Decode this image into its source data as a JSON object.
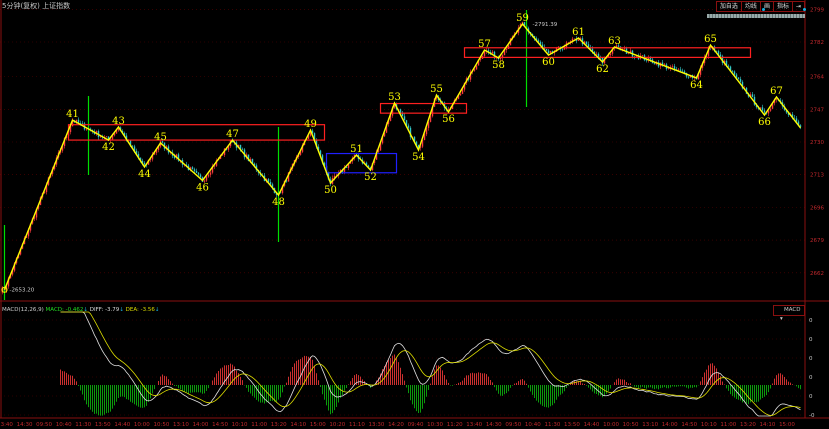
{
  "header": {
    "title": "5分钟(复权)  上证指数",
    "toolbar": [
      "加自选",
      "均线",
      "画",
      "指标",
      "⇥"
    ]
  },
  "colors": {
    "background": "#000000",
    "grid": "#5a0000",
    "axis_text": "#c0282c",
    "up_candle": "#ff3c3c",
    "down_candle": "#32c8c8",
    "zigzag": "#ffff00",
    "box_red": "#ff2020",
    "box_blue": "#2020ff",
    "marker_line": "#00dd00"
  },
  "chart_data": {
    "type": "line",
    "price_axis": {
      "ticks": [
        "2799",
        "2782",
        "2764",
        "2747",
        "2730",
        "2713",
        "2696",
        "2679",
        "2662"
      ],
      "range": [
        2645,
        2800
      ]
    },
    "time_ticks": [
      "13:40",
      "14:30",
      "09:50",
      "10:40",
      "11:30",
      "13:50",
      "14:40",
      "10:00",
      "10:50",
      "13:10",
      "14:00",
      "14:50",
      "10:10",
      "11:00",
      "13:20",
      "14:10",
      "15:00",
      "10:20",
      "11:10",
      "13:30",
      "14:20",
      "09:40",
      "10:30",
      "11:20",
      "13:40",
      "14:30",
      "09:50",
      "10:40",
      "11:30",
      "13:50",
      "14:40",
      "10:00",
      "10:50",
      "13:10",
      "14:00",
      "14:50",
      "10:10",
      "11:00",
      "13:20",
      "14:10",
      "15:00"
    ],
    "low_label": "2653.20",
    "high_label": "2791.39",
    "zigzag": [
      {
        "label": "",
        "bar": 2,
        "price": 2653.2
      },
      {
        "label": "41",
        "bar": 36,
        "price": 2741.4
      },
      {
        "label": "42",
        "bar": 54,
        "price": 2731.0
      },
      {
        "label": "43",
        "bar": 59,
        "price": 2737.8
      },
      {
        "label": "44",
        "bar": 72,
        "price": 2717.0
      },
      {
        "label": "45",
        "bar": 80,
        "price": 2729.5
      },
      {
        "label": "46",
        "bar": 101,
        "price": 2710.0
      },
      {
        "label": "47",
        "bar": 116,
        "price": 2731.0
      },
      {
        "label": "48",
        "bar": 139,
        "price": 2702.4
      },
      {
        "label": "49",
        "bar": 155,
        "price": 2736.2
      },
      {
        "label": "50",
        "bar": 165,
        "price": 2708.7
      },
      {
        "label": "51",
        "bar": 178,
        "price": 2723.2
      },
      {
        "label": "52",
        "bar": 185,
        "price": 2715.4
      },
      {
        "label": "53",
        "bar": 197,
        "price": 2750.3
      },
      {
        "label": "54",
        "bar": 209,
        "price": 2725.8
      },
      {
        "label": "55",
        "bar": 218,
        "price": 2754.4
      },
      {
        "label": "56",
        "bar": 224,
        "price": 2745.6
      },
      {
        "label": "57",
        "bar": 242,
        "price": 2777.8
      },
      {
        "label": "58",
        "bar": 249,
        "price": 2773.7
      },
      {
        "label": "59",
        "bar": 261,
        "price": 2791.4
      },
      {
        "label": "60",
        "bar": 274,
        "price": 2775.2
      },
      {
        "label": "61",
        "bar": 289,
        "price": 2784.1
      },
      {
        "label": "62",
        "bar": 301,
        "price": 2771.6
      },
      {
        "label": "63",
        "bar": 307,
        "price": 2779.4
      },
      {
        "label": "64",
        "bar": 348,
        "price": 2763.3
      },
      {
        "label": "65",
        "bar": 355,
        "price": 2780.4
      },
      {
        "label": "66",
        "bar": 382,
        "price": 2744.0
      },
      {
        "label": "67",
        "bar": 388,
        "price": 2753.4
      },
      {
        "label": "",
        "bar": 400,
        "price": 2737.3
      }
    ],
    "boxes": [
      {
        "color": "red",
        "bars": [
          34,
          162
        ],
        "prices": [
          2731,
          2739
        ]
      },
      {
        "color": "blue",
        "bars": [
          163,
          198
        ],
        "prices": [
          2714,
          2724
        ]
      },
      {
        "color": "red",
        "bars": [
          190,
          233
        ],
        "prices": [
          2745,
          2750
        ]
      },
      {
        "color": "red",
        "bars": [
          232,
          375
        ],
        "prices": [
          2774,
          2779
        ]
      }
    ],
    "marker_lines_bars": [
      2,
      44,
      139,
      263
    ]
  },
  "macd": {
    "label": "MACD(12,26,9)",
    "macd_value": "MACD: -0.462",
    "diff_value": "DIFF: -3.79",
    "dea_value": "DEA: -3.56",
    "selector": "MACD",
    "axis_ticks": [
      "0",
      "0",
      "0",
      "0",
      "0",
      "-0"
    ]
  }
}
